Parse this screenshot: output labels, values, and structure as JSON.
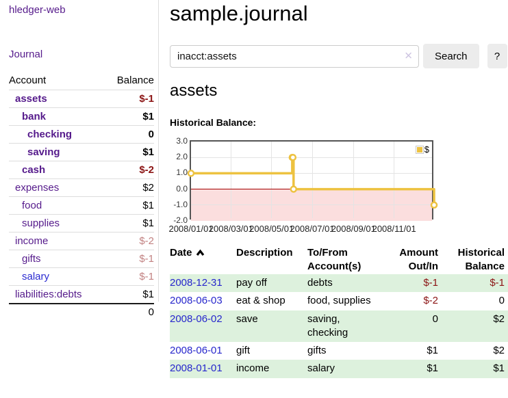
{
  "brand": {
    "title": "hledger-web"
  },
  "nav": {
    "journal": "Journal"
  },
  "sidebar": {
    "header": {
      "account": "Account",
      "balance": "Balance"
    },
    "accounts": [
      {
        "name": "assets",
        "balance": "$-1"
      },
      {
        "name": "bank",
        "balance": "$1"
      },
      {
        "name": "checking",
        "balance": "0"
      },
      {
        "name": "saving",
        "balance": "$1"
      },
      {
        "name": "cash",
        "balance": "$-2"
      },
      {
        "name": "expenses",
        "balance": "$2"
      },
      {
        "name": "food",
        "balance": "$1"
      },
      {
        "name": "supplies",
        "balance": "$1"
      },
      {
        "name": "income",
        "balance": "$-2"
      },
      {
        "name": "gifts",
        "balance": "$-1"
      },
      {
        "name": "salary",
        "balance": "$-1"
      },
      {
        "name": "liabilities:debts",
        "balance": "$1"
      }
    ],
    "total": "0"
  },
  "main": {
    "title": "sample.journal",
    "search": {
      "value": "inacct:assets",
      "clear": "✕",
      "button": "Search",
      "help": "?"
    },
    "account_heading": "assets",
    "chart_title": "Historical Balance:"
  },
  "chart_data": {
    "type": "line",
    "style": "step",
    "title": "Historical Balance:",
    "series": [
      {
        "name": "$",
        "color": "#edc240",
        "points": [
          [
            "2008-01-01",
            1
          ],
          [
            "2008-06-01",
            2
          ],
          [
            "2008-06-02",
            2
          ],
          [
            "2008-06-03",
            0
          ],
          [
            "2008-12-31",
            -1
          ]
        ]
      }
    ],
    "x_range": [
      "2008-01-01",
      "2009-01-01"
    ],
    "ylim": [
      -2,
      3
    ],
    "yticks": [
      "3.0",
      "2.0",
      "1.0",
      "0.0",
      "-1.0",
      "-2.0"
    ],
    "xticks": [
      "2008/01/01",
      "2008/03/01",
      "2008/05/01",
      "2008/07/01",
      "2008/09/01",
      "2008/11/01"
    ],
    "legend": {
      "label": "$",
      "position": "top-right"
    },
    "grid": true,
    "negative_region_color": "#fbdede",
    "zero_line_color": "#a40000",
    "grid_color": "#e4e4e4"
  },
  "register": {
    "headers": {
      "date": "Date",
      "description": "Description",
      "account": "To/From Account(s)",
      "amount": "Amount Out/In",
      "balance": "Historical Balance"
    },
    "rows": [
      {
        "date": "2008-12-31",
        "description": "pay off",
        "account": "debts",
        "amount": "$-1",
        "balance": "$-1"
      },
      {
        "date": "2008-06-03",
        "description": "eat & shop",
        "account": "food, supplies",
        "amount": "$-2",
        "balance": "0"
      },
      {
        "date": "2008-06-02",
        "description": "save",
        "account": "saving, checking",
        "amount": "0",
        "balance": "$2"
      },
      {
        "date": "2008-06-01",
        "description": "gift",
        "account": "gifts",
        "amount": "$1",
        "balance": "$2"
      },
      {
        "date": "2008-01-01",
        "description": "income",
        "account": "salary",
        "amount": "$1",
        "balance": "$1"
      }
    ]
  },
  "colors": {
    "link_purple": "#551a8b",
    "link_blue": "#2a2ad0",
    "negative_strong": "#8b1414",
    "negative_muted": "#c28282",
    "row_stripe_green": "#ddf1dd",
    "chart_line": "#edc240",
    "chart_negative_fill": "#fbdede",
    "chart_zero_line": "#a40000"
  }
}
